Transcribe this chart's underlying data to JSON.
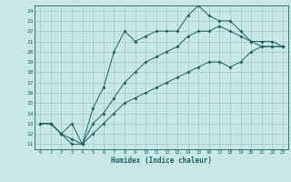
{
  "xlabel": "Humidex (Indice chaleur)",
  "bg_color": "#c8e8e8",
  "grid_color": "#a0c8c8",
  "line_color": "#1a6060",
  "xlim": [
    -0.5,
    23.5
  ],
  "ylim": [
    10.5,
    24.5
  ],
  "xticks": [
    0,
    1,
    2,
    3,
    4,
    5,
    6,
    7,
    8,
    9,
    10,
    11,
    12,
    13,
    14,
    15,
    16,
    17,
    18,
    19,
    20,
    21,
    22,
    23
  ],
  "yticks": [
    11,
    12,
    13,
    14,
    15,
    16,
    17,
    18,
    19,
    20,
    21,
    22,
    23,
    24
  ],
  "line1_x": [
    0,
    1,
    2,
    3,
    4,
    5,
    6,
    7,
    8,
    9,
    10,
    11,
    12,
    13,
    14,
    15,
    16,
    17,
    18,
    19,
    20,
    21,
    22,
    23
  ],
  "line1_y": [
    13,
    13,
    12,
    13,
    11,
    14.5,
    16.5,
    20,
    22,
    21,
    21.5,
    22,
    22,
    22,
    23.5,
    24.5,
    23.5,
    23,
    23,
    22,
    21,
    20.5,
    20.5,
    20.5
  ],
  "line2_x": [
    0,
    1,
    2,
    3,
    4,
    5,
    6,
    7,
    8,
    9,
    10,
    11,
    12,
    13,
    14,
    15,
    16,
    17,
    18,
    19,
    20,
    21,
    22,
    23
  ],
  "line2_y": [
    13,
    13,
    12,
    11,
    11,
    13,
    14,
    15.5,
    17,
    18,
    19,
    19.5,
    20,
    20.5,
    21.5,
    22,
    22,
    22.5,
    22,
    21.5,
    21,
    21,
    21,
    20.5
  ],
  "line3_x": [
    0,
    1,
    2,
    3,
    4,
    5,
    6,
    7,
    8,
    9,
    10,
    11,
    12,
    13,
    14,
    15,
    16,
    17,
    18,
    19,
    20,
    21,
    22,
    23
  ],
  "line3_y": [
    13,
    13,
    12,
    11.5,
    11,
    12,
    13,
    14,
    15,
    15.5,
    16,
    16.5,
    17,
    17.5,
    18,
    18.5,
    19,
    19,
    18.5,
    19,
    20,
    20.5,
    20.5,
    20.5
  ]
}
